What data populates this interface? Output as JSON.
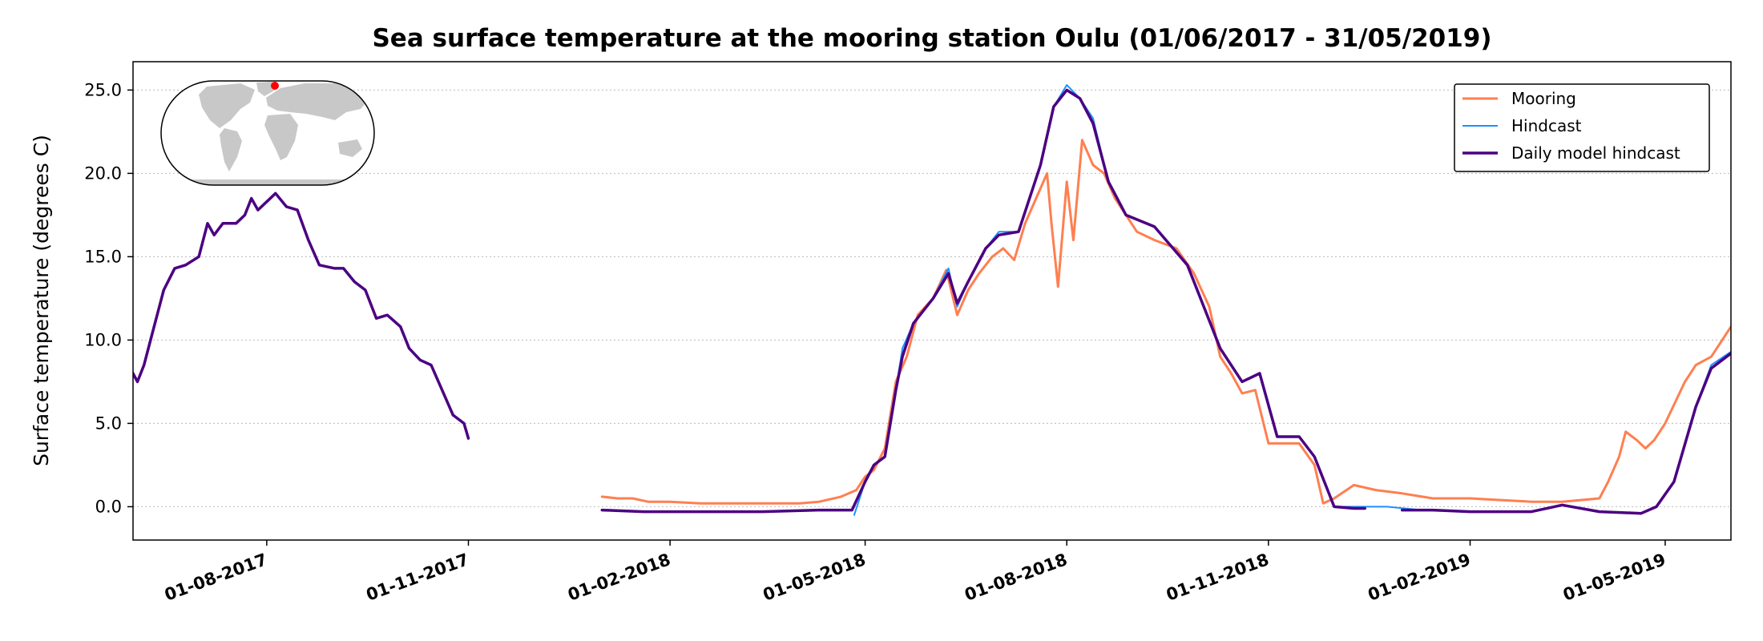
{
  "chart_data": {
    "type": "line",
    "title": "Sea surface temperature at the mooring station Oulu (01/06/2017 - 31/05/2019)",
    "xlabel": "",
    "ylabel": "Surface temperature (degrees C)",
    "xlim": [
      "2017-06-01",
      "2019-05-31"
    ],
    "ylim": [
      -2.0,
      26.7
    ],
    "yticks": [
      0.0,
      5.0,
      10.0,
      15.0,
      20.0,
      25.0
    ],
    "ytick_labels": [
      "0.0",
      "5.0",
      "10.0",
      "15.0",
      "20.0",
      "25.0"
    ],
    "xticks": [
      "2017-08-01",
      "2017-11-01",
      "2018-02-01",
      "2018-05-01",
      "2018-08-01",
      "2018-11-01",
      "2019-02-01",
      "2019-05-01"
    ],
    "xtick_labels": [
      "01-08-2017",
      "01-11-2017",
      "01-02-2018",
      "01-05-2018",
      "01-08-2018",
      "01-11-2018",
      "01-02-2019",
      "01-05-2019"
    ],
    "grid": "horizontal dotted",
    "legend_position": "top-right",
    "inset": "world-map-locator",
    "colors": {
      "mooring": "#FF7F50",
      "hindcast": "#1E90FF",
      "daily": "#4B0082",
      "marker": "#FF0000",
      "land": "#C8C8C8",
      "grid": "#BBBBBB"
    },
    "series": [
      {
        "name": "Mooring",
        "segments": [
          [
            [
              "2018-01-01",
              0.6
            ],
            [
              "2018-01-08",
              0.5
            ],
            [
              "2018-01-15",
              0.5
            ],
            [
              "2018-01-22",
              0.3
            ],
            [
              "2018-02-01",
              0.3
            ],
            [
              "2018-02-15",
              0.2
            ],
            [
              "2018-03-01",
              0.2
            ],
            [
              "2018-03-15",
              0.2
            ],
            [
              "2018-04-01",
              0.2
            ],
            [
              "2018-04-10",
              0.3
            ],
            [
              "2018-04-20",
              0.6
            ],
            [
              "2018-04-27",
              1.0
            ],
            [
              "2018-05-01",
              1.8
            ],
            [
              "2018-05-05",
              2.2
            ],
            [
              "2018-05-10",
              3.5
            ],
            [
              "2018-05-15",
              7.5
            ],
            [
              "2018-05-20",
              9.0
            ],
            [
              "2018-05-25",
              11.5
            ],
            [
              "2018-06-01",
              12.5
            ],
            [
              "2018-06-07",
              14.2
            ],
            [
              "2018-06-12",
              11.5
            ],
            [
              "2018-06-17",
              13.0
            ],
            [
              "2018-06-22",
              14.0
            ],
            [
              "2018-06-28",
              15.0
            ],
            [
              "2018-07-03",
              15.5
            ],
            [
              "2018-07-08",
              14.8
            ],
            [
              "2018-07-13",
              17.0
            ],
            [
              "2018-07-18",
              18.5
            ],
            [
              "2018-07-23",
              20.0
            ],
            [
              "2018-07-25",
              17.0
            ],
            [
              "2018-07-28",
              13.2
            ],
            [
              "2018-08-01",
              19.5
            ],
            [
              "2018-08-04",
              16.0
            ],
            [
              "2018-08-08",
              22.0
            ],
            [
              "2018-08-13",
              20.5
            ],
            [
              "2018-08-18",
              20.0
            ],
            [
              "2018-08-23",
              18.5
            ],
            [
              "2018-08-28",
              17.5
            ],
            [
              "2018-09-02",
              16.5
            ],
            [
              "2018-09-10",
              16.0
            ],
            [
              "2018-09-20",
              15.5
            ],
            [
              "2018-09-28",
              14.0
            ],
            [
              "2018-10-05",
              12.0
            ],
            [
              "2018-10-10",
              9.0
            ],
            [
              "2018-10-15",
              8.0
            ],
            [
              "2018-10-20",
              6.8
            ],
            [
              "2018-10-26",
              7.0
            ],
            [
              "2018-11-01",
              3.8
            ],
            [
              "2018-11-08",
              3.8
            ],
            [
              "2018-11-15",
              3.8
            ],
            [
              "2018-11-22",
              2.5
            ],
            [
              "2018-11-26",
              0.2
            ],
            [
              "2018-12-01",
              0.5
            ],
            [
              "2018-12-10",
              1.3
            ],
            [
              "2018-12-20",
              1.0
            ],
            [
              "2019-01-01",
              0.8
            ],
            [
              "2019-01-15",
              0.5
            ],
            [
              "2019-02-01",
              0.5
            ],
            [
              "2019-02-15",
              0.4
            ],
            [
              "2019-03-01",
              0.3
            ],
            [
              "2019-03-15",
              0.3
            ],
            [
              "2019-04-01",
              0.5
            ],
            [
              "2019-04-05",
              1.5
            ],
            [
              "2019-04-10",
              3.0
            ],
            [
              "2019-04-13",
              4.5
            ],
            [
              "2019-04-18",
              4.0
            ],
            [
              "2019-04-22",
              3.5
            ],
            [
              "2019-04-26",
              4.0
            ],
            [
              "2019-05-01",
              5.0
            ],
            [
              "2019-05-10",
              7.5
            ],
            [
              "2019-05-15",
              8.5
            ],
            [
              "2019-05-22",
              9.0
            ],
            [
              "2019-05-27",
              10.0
            ],
            [
              "2019-05-31",
              10.8
            ]
          ]
        ]
      },
      {
        "name": "Hindcast",
        "segments": [
          [
            [
              "2018-04-26",
              -0.5
            ],
            [
              "2018-05-01",
              1.5
            ],
            [
              "2018-05-05",
              2.5
            ],
            [
              "2018-05-10",
              3.0
            ],
            [
              "2018-05-15",
              7.0
            ],
            [
              "2018-05-18",
              9.5
            ],
            [
              "2018-05-23",
              11.0
            ],
            [
              "2018-06-01",
              12.5
            ],
            [
              "2018-06-08",
              14.3
            ],
            [
              "2018-06-12",
              12.0
            ],
            [
              "2018-06-17",
              13.5
            ],
            [
              "2018-06-25",
              15.5
            ],
            [
              "2018-07-01",
              16.5
            ],
            [
              "2018-07-10",
              16.5
            ],
            [
              "2018-07-20",
              20.5
            ],
            [
              "2018-07-26",
              24.0
            ],
            [
              "2018-08-01",
              25.3
            ],
            [
              "2018-08-07",
              24.5
            ],
            [
              "2018-08-13",
              23.3
            ],
            [
              "2018-08-20",
              19.5
            ],
            [
              "2018-08-28",
              17.5
            ],
            [
              "2018-09-10",
              16.8
            ],
            [
              "2018-09-25",
              14.5
            ],
            [
              "2018-10-10",
              9.5
            ],
            [
              "2018-10-20",
              7.5
            ],
            [
              "2018-10-28",
              8.0
            ],
            [
              "2018-11-05",
              4.2
            ],
            [
              "2018-11-15",
              4.2
            ],
            [
              "2018-11-22",
              3.0
            ],
            [
              "2018-12-01",
              0.0
            ],
            [
              "2018-12-10",
              0.0
            ],
            [
              "2018-12-25",
              0.0
            ],
            [
              "2019-01-10",
              -0.2
            ],
            [
              "2019-02-01",
              -0.3
            ],
            [
              "2019-03-01",
              -0.3
            ],
            [
              "2019-03-15",
              0.1
            ],
            [
              "2019-04-01",
              -0.3
            ],
            [
              "2019-04-20",
              -0.4
            ],
            [
              "2019-04-27",
              0.0
            ],
            [
              "2019-05-05",
              1.5
            ],
            [
              "2019-05-15",
              6.0
            ],
            [
              "2019-05-22",
              8.5
            ],
            [
              "2019-05-31",
              9.3
            ]
          ]
        ]
      },
      {
        "name": "Daily model hindcast",
        "segments": [
          [
            [
              "2017-06-01",
              8.0
            ],
            [
              "2017-06-03",
              7.5
            ],
            [
              "2017-06-06",
              8.5
            ],
            [
              "2017-06-10",
              10.5
            ],
            [
              "2017-06-15",
              13.0
            ],
            [
              "2017-06-20",
              14.3
            ],
            [
              "2017-06-25",
              14.5
            ],
            [
              "2017-07-01",
              15.0
            ],
            [
              "2017-07-05",
              17.0
            ],
            [
              "2017-07-08",
              16.3
            ],
            [
              "2017-07-12",
              17.0
            ],
            [
              "2017-07-18",
              17.0
            ],
            [
              "2017-07-22",
              17.5
            ],
            [
              "2017-07-25",
              18.5
            ],
            [
              "2017-07-28",
              17.8
            ],
            [
              "2017-08-01",
              18.3
            ],
            [
              "2017-08-05",
              18.8
            ],
            [
              "2017-08-10",
              18.0
            ],
            [
              "2017-08-15",
              17.8
            ],
            [
              "2017-08-20",
              16.0
            ],
            [
              "2017-08-25",
              14.5
            ],
            [
              "2017-09-01",
              14.3
            ],
            [
              "2017-09-05",
              14.3
            ],
            [
              "2017-09-10",
              13.5
            ],
            [
              "2017-09-15",
              13.0
            ],
            [
              "2017-09-20",
              11.3
            ],
            [
              "2017-09-25",
              11.5
            ],
            [
              "2017-10-01",
              10.8
            ],
            [
              "2017-10-05",
              9.5
            ],
            [
              "2017-10-10",
              8.8
            ],
            [
              "2017-10-15",
              8.5
            ],
            [
              "2017-10-20",
              7.0
            ],
            [
              "2017-10-25",
              5.5
            ],
            [
              "2017-10-30",
              5.0
            ],
            [
              "2017-11-01",
              4.1
            ]
          ],
          [
            [
              "2018-01-01",
              -0.2
            ],
            [
              "2018-01-20",
              -0.3
            ],
            [
              "2018-02-15",
              -0.3
            ],
            [
              "2018-03-15",
              -0.3
            ],
            [
              "2018-04-10",
              -0.2
            ],
            [
              "2018-04-25",
              -0.2
            ],
            [
              "2018-05-01",
              1.5
            ],
            [
              "2018-05-05",
              2.5
            ],
            [
              "2018-05-10",
              3.0
            ],
            [
              "2018-05-15",
              7.0
            ],
            [
              "2018-05-18",
              9.0
            ],
            [
              "2018-05-23",
              11.0
            ],
            [
              "2018-06-01",
              12.5
            ],
            [
              "2018-06-08",
              14.0
            ],
            [
              "2018-06-12",
              12.2
            ],
            [
              "2018-06-17",
              13.5
            ],
            [
              "2018-06-25",
              15.5
            ],
            [
              "2018-07-01",
              16.3
            ],
            [
              "2018-07-10",
              16.5
            ],
            [
              "2018-07-20",
              20.5
            ],
            [
              "2018-07-26",
              24.0
            ],
            [
              "2018-08-01",
              25.0
            ],
            [
              "2018-08-07",
              24.5
            ],
            [
              "2018-08-13",
              23.0
            ],
            [
              "2018-08-20",
              19.5
            ],
            [
              "2018-08-28",
              17.5
            ],
            [
              "2018-09-10",
              16.8
            ],
            [
              "2018-09-25",
              14.5
            ],
            [
              "2018-10-10",
              9.5
            ],
            [
              "2018-10-20",
              7.5
            ],
            [
              "2018-10-28",
              8.0
            ],
            [
              "2018-11-05",
              4.2
            ],
            [
              "2018-11-15",
              4.2
            ],
            [
              "2018-11-22",
              3.0
            ],
            [
              "2018-12-01",
              0.0
            ],
            [
              "2018-12-10",
              -0.1
            ],
            [
              "2018-12-15",
              -0.1
            ]
          ],
          [
            [
              "2019-01-01",
              -0.2
            ],
            [
              "2019-01-15",
              -0.2
            ],
            [
              "2019-02-01",
              -0.3
            ],
            [
              "2019-03-01",
              -0.3
            ],
            [
              "2019-03-15",
              0.1
            ],
            [
              "2019-04-01",
              -0.3
            ],
            [
              "2019-04-20",
              -0.4
            ],
            [
              "2019-04-27",
              0.0
            ],
            [
              "2019-05-05",
              1.5
            ],
            [
              "2019-05-15",
              6.0
            ],
            [
              "2019-05-22",
              8.3
            ],
            [
              "2019-05-31",
              9.2
            ]
          ]
        ]
      }
    ]
  }
}
